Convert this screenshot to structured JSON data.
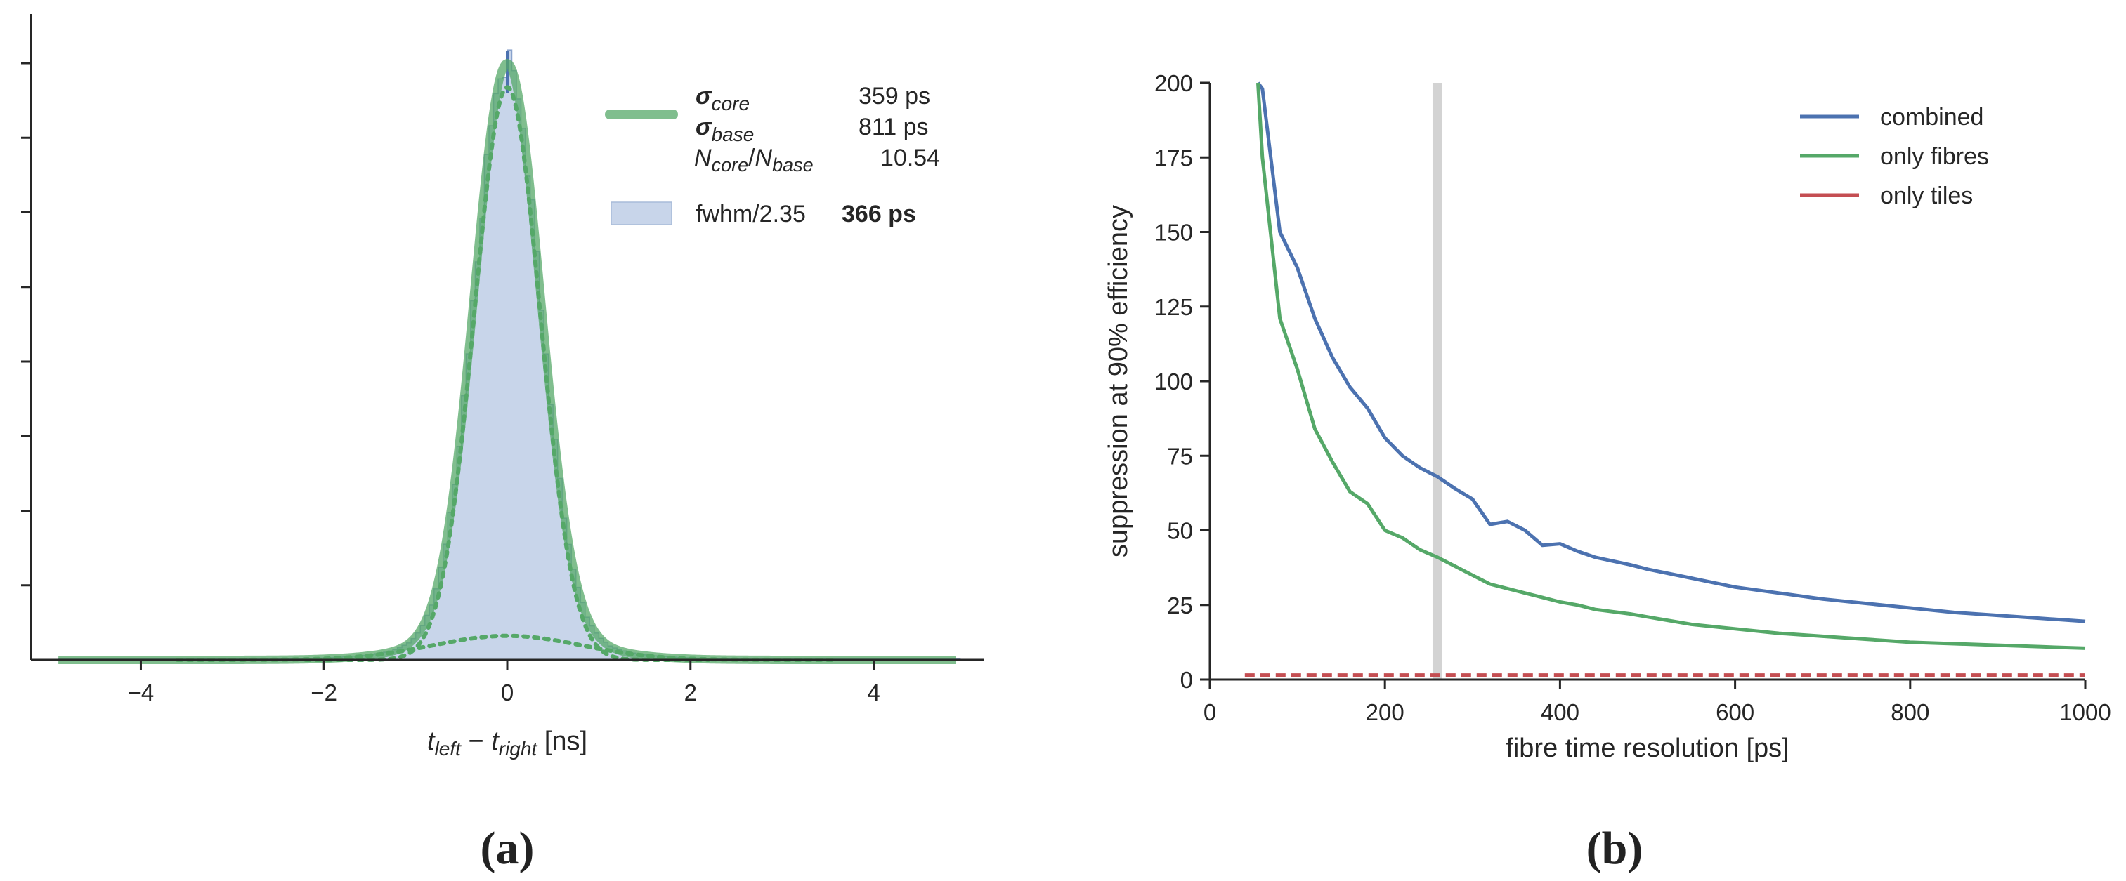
{
  "chart_data": [
    {
      "id": "a",
      "type": "histogram",
      "caption": "(a)",
      "xlabel": {
        "var1": "t",
        "sub1": "left",
        "minus": " − ",
        "var2": "t",
        "sub2": "right",
        "unit": " [ns]"
      },
      "ylabel": "",
      "xlim": [
        -5.2,
        5.2
      ],
      "ylim": [
        0,
        1.0
      ],
      "xticks": [
        -4,
        -2,
        0,
        2,
        4
      ],
      "xtick_labels": [
        "−4",
        "−2",
        "0",
        "2",
        "4"
      ],
      "yticks": [
        0.125,
        0.25,
        0.375,
        0.5,
        0.625,
        0.75,
        0.875,
        1.0
      ],
      "fit": {
        "sigma_core_ns": 0.359,
        "sigma_base_ns": 0.811,
        "ratio": 10.54,
        "mean_ns": 0.0
      },
      "legend": {
        "sigma_core_label": {
          "sym": "σ",
          "sub": "core"
        },
        "sigma_core_value": "359 ps",
        "sigma_base_label": {
          "sym": "σ",
          "sub": "base"
        },
        "sigma_base_value": "811 ps",
        "ratio_label": {
          "n1": "N",
          "sub1": "core",
          "slash": "/",
          "n2": "N",
          "sub2": "base"
        },
        "ratio_value": "10.54",
        "fwhm_label": "fwhm/2.35",
        "fwhm_value": "366 ps"
      },
      "colors": {
        "fit": "#55a868",
        "hist_fill": "#c8d5ea",
        "hist_edge": "#4c72b0"
      }
    },
    {
      "id": "b",
      "type": "line",
      "caption": "(b)",
      "xlabel": "fibre time resolution [ps]",
      "ylabel": "suppression at 90% efficiency",
      "xlim": [
        0,
        1000
      ],
      "ylim": [
        0,
        200
      ],
      "xticks": [
        0,
        200,
        400,
        600,
        800,
        1000
      ],
      "xtick_labels": [
        "0",
        "200",
        "400",
        "600",
        "800",
        "1000"
      ],
      "yticks": [
        0,
        25,
        50,
        75,
        100,
        125,
        150,
        175,
        200
      ],
      "ytick_labels": [
        "0",
        "25",
        "50",
        "75",
        "100",
        "125",
        "150",
        "175",
        "200"
      ],
      "marker_x": 260,
      "series": [
        {
          "name": "combined",
          "color": "#4c72b0",
          "style": "solid",
          "x": [
            55,
            60,
            80,
            100,
            120,
            140,
            160,
            180,
            200,
            220,
            240,
            260,
            280,
            300,
            320,
            340,
            360,
            380,
            400,
            420,
            440,
            480,
            500,
            550,
            600,
            650,
            700,
            750,
            800,
            850,
            900,
            950,
            1000
          ],
          "y": [
            200,
            198,
            150,
            138,
            121,
            108,
            98,
            91,
            81,
            75,
            71,
            68,
            64,
            60.5,
            52,
            53,
            50,
            45,
            45.5,
            43,
            41,
            38.5,
            37,
            34,
            31,
            29,
            27,
            25.5,
            24,
            22.5,
            21.5,
            20.5,
            19.5
          ]
        },
        {
          "name": "only fibres",
          "color": "#55a868",
          "style": "solid",
          "x": [
            55,
            60,
            80,
            100,
            120,
            140,
            160,
            180,
            200,
            220,
            240,
            260,
            280,
            300,
            320,
            340,
            360,
            380,
            400,
            420,
            440,
            480,
            500,
            550,
            600,
            650,
            700,
            750,
            800,
            850,
            900,
            950,
            1000
          ],
          "y": [
            200,
            175,
            121,
            104,
            84,
            73,
            63,
            59,
            50,
            47.5,
            43.5,
            41,
            38,
            35,
            32,
            30.5,
            29,
            27.5,
            26,
            25,
            23.5,
            22,
            21,
            18.5,
            17,
            15.5,
            14.5,
            13.5,
            12.5,
            12,
            11.5,
            11,
            10.5
          ]
        },
        {
          "name": "only tiles",
          "color": "#c44e52",
          "style": "dashed",
          "x": [
            40,
            1000
          ],
          "y": [
            1.5,
            1.5
          ]
        }
      ],
      "colors": {
        "marker": "#d3d3d3"
      }
    }
  ]
}
